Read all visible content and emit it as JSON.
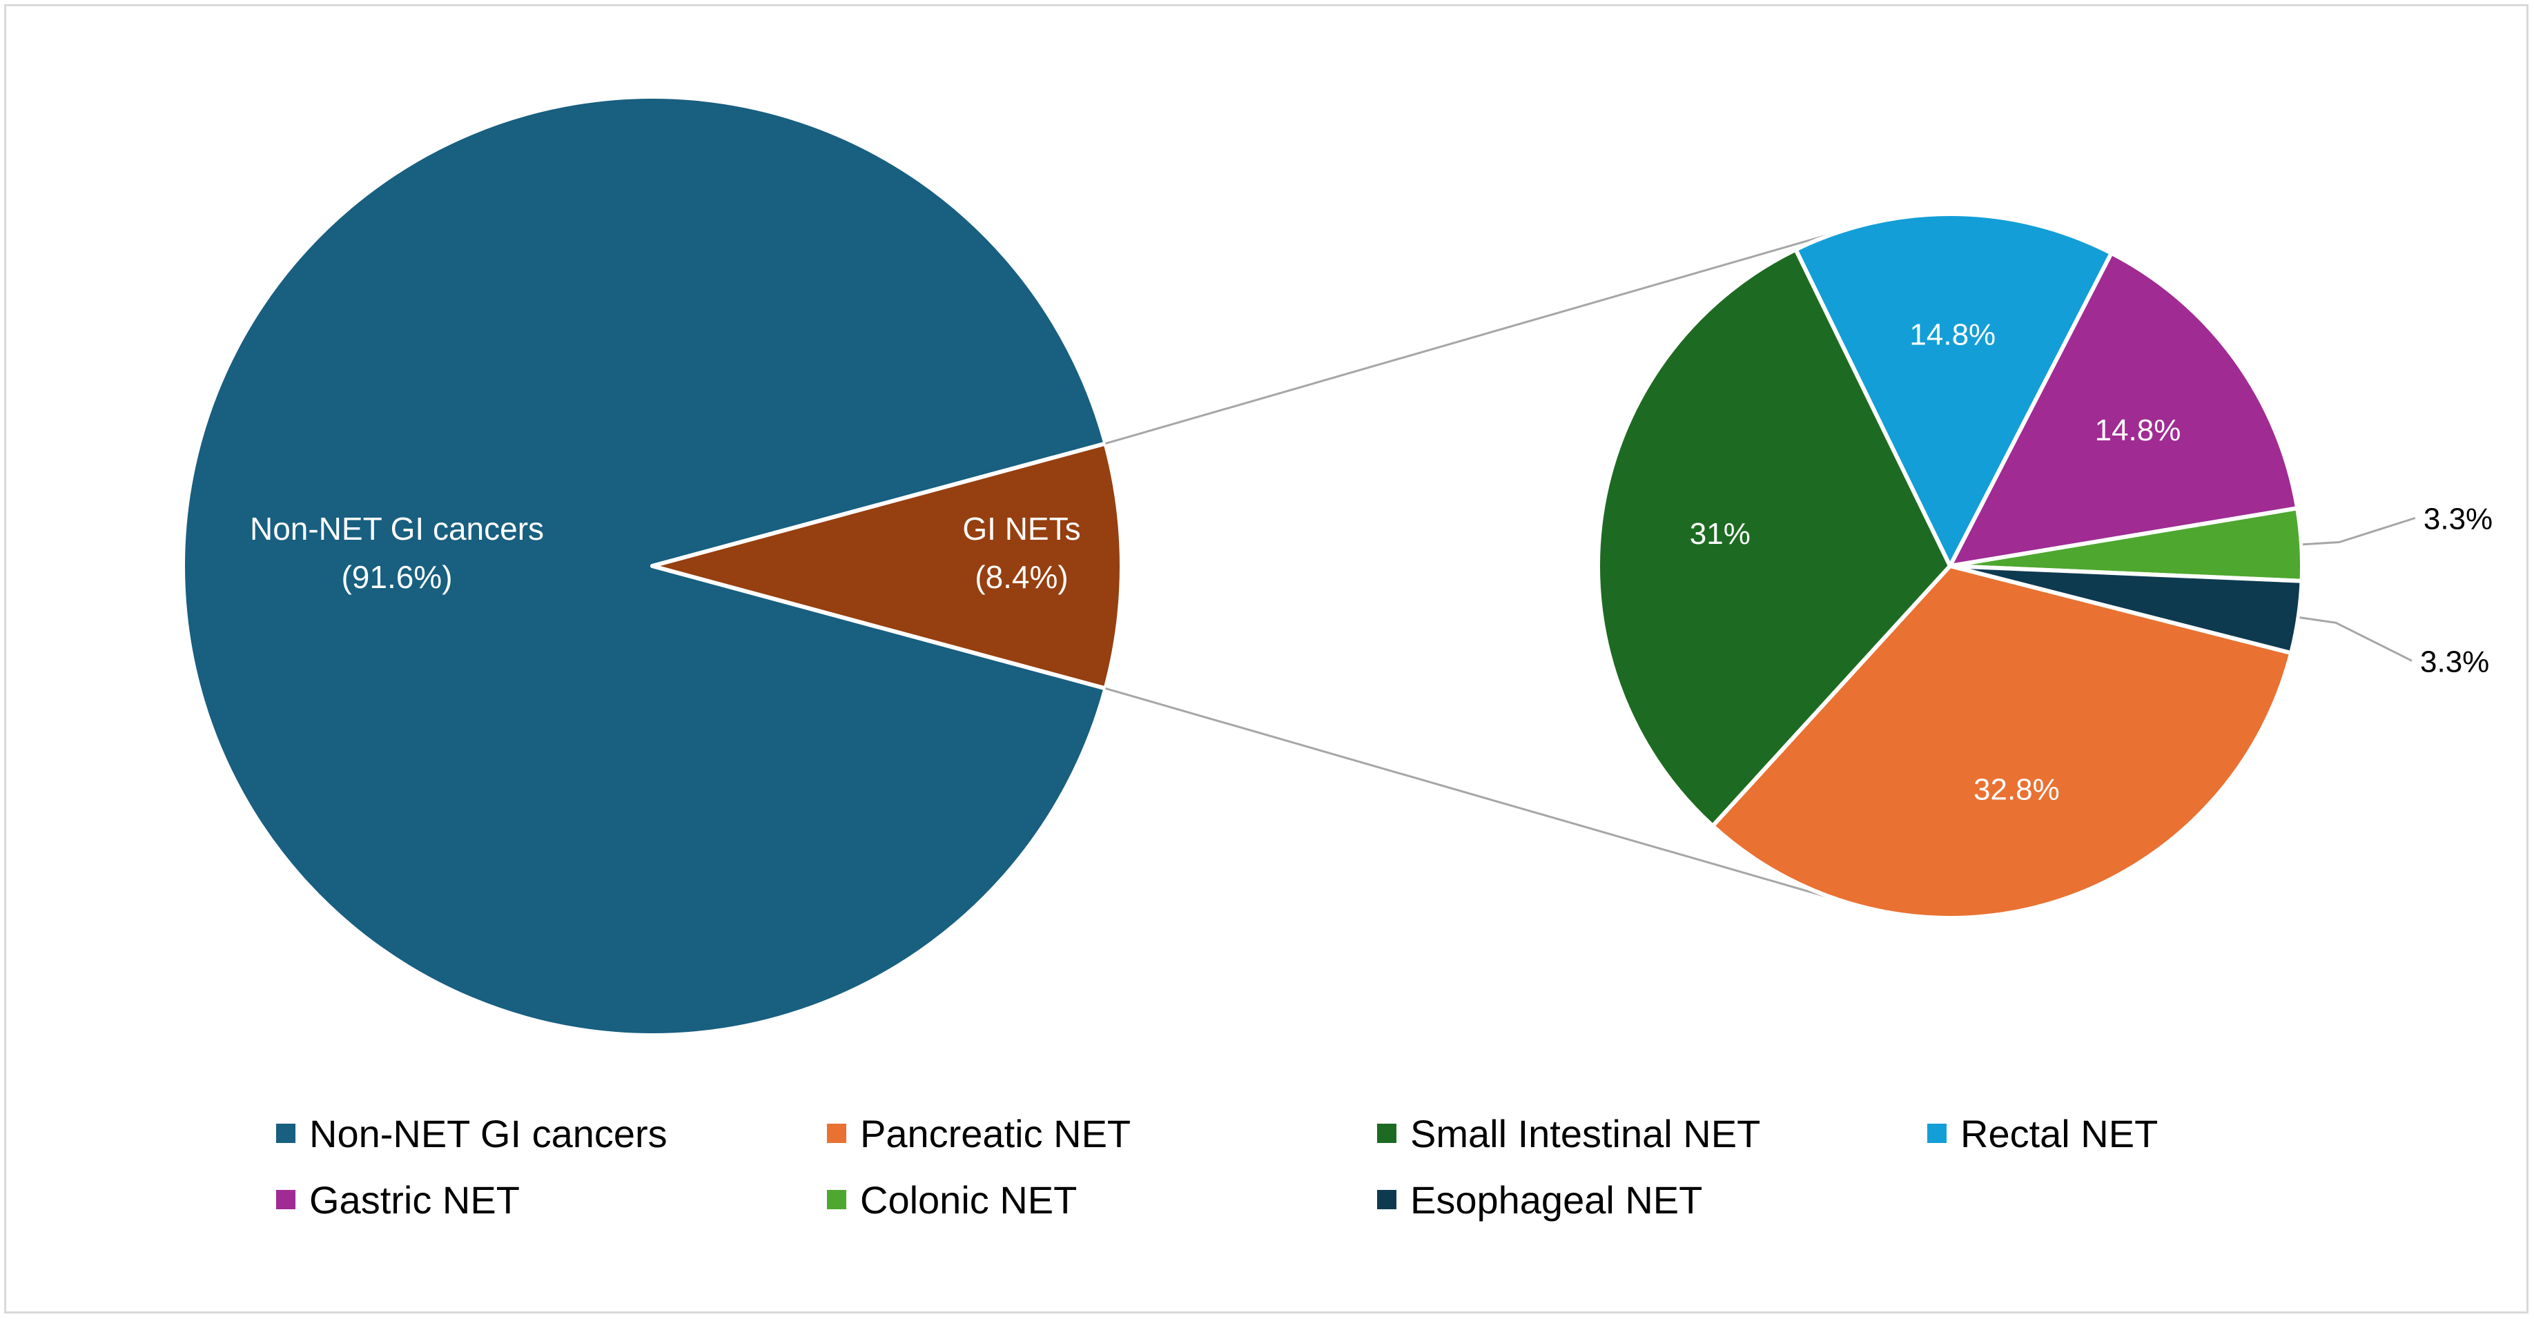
{
  "chart_data": {
    "type": "pie",
    "subtype": "pie-of-pie",
    "main_pie": {
      "slices": [
        {
          "name": "Non-NET GI cancers",
          "label_line1": "Non-NET GI cancers",
          "label_line2": "(91.6%)",
          "value": 91.6,
          "color": "#185f80"
        },
        {
          "name": "GI NETs",
          "label_line1": "GI NETs",
          "label_line2": "(8.4%)",
          "value": 8.4,
          "color": "#963f10"
        }
      ]
    },
    "secondary_pie": {
      "slices": [
        {
          "name": "Rectal NET",
          "value": 14.8,
          "label": "14.8%",
          "color": "#139ed8",
          "label_color": "#ffffff"
        },
        {
          "name": "Gastric NET",
          "value": 14.8,
          "label": "14.8%",
          "color": "#a02b93",
          "label_color": "#ffffff"
        },
        {
          "name": "Colonic NET",
          "value": 3.3,
          "label": "3.3%",
          "color": "#4ea72e",
          "label_color": "#000000"
        },
        {
          "name": "Esophageal NET",
          "value": 3.3,
          "label": "3.3%",
          "color": "#0e3a50",
          "label_color": "#000000"
        },
        {
          "name": "Pancreatic NET",
          "value": 32.8,
          "label": "32.8%",
          "color": "#e97132",
          "label_color": "#ffffff"
        },
        {
          "name": "Small Intestinal NET",
          "value": 31,
          "label": "31%",
          "color": "#1d6b22",
          "label_color": "#ffffff"
        }
      ]
    },
    "legend": {
      "position": "bottom",
      "items": [
        {
          "label": "Non-NET GI cancers",
          "color": "#185f80"
        },
        {
          "label": "Pancreatic NET",
          "color": "#e97132"
        },
        {
          "label": "Small Intestinal NET",
          "color": "#1d6b22"
        },
        {
          "label": "Rectal NET",
          "color": "#139ed8"
        },
        {
          "label": "Gastric NET",
          "color": "#a02b93"
        },
        {
          "label": "Colonic NET",
          "color": "#4ea72e"
        },
        {
          "label": "Esophageal NET",
          "color": "#0e3a50"
        }
      ]
    }
  }
}
